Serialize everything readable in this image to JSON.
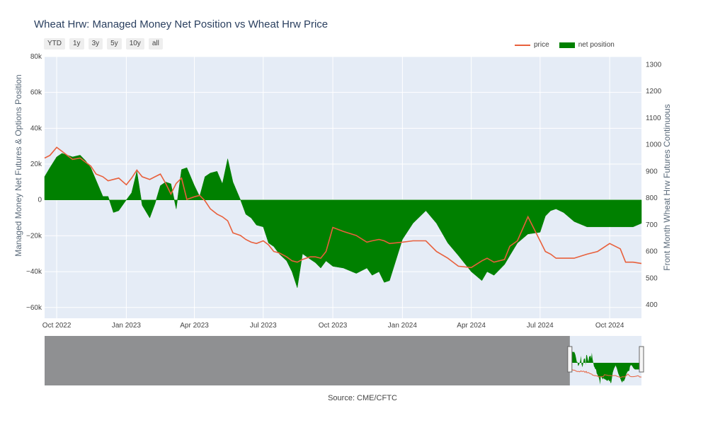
{
  "chart_data": {
    "type": "area",
    "title": "Wheat Hrw: Managed Money Net Position vs Wheat Hrw Price",
    "range_buttons": [
      "YTD",
      "1y",
      "3y",
      "5y",
      "10y",
      "all"
    ],
    "legend": [
      "price",
      "net position"
    ],
    "ylabel_left": "Managed Money Net Futures & Options Position",
    "ylabel_right": "Front Month Wheat Hrw Futures Continuous",
    "source": "Source: CME/CFTC",
    "y_left_range": [
      -66000,
      80000
    ],
    "y_right_range": [
      350,
      1330
    ],
    "y_left_ticks": [
      80000,
      60000,
      40000,
      20000,
      0,
      -20000,
      -40000,
      -60000
    ],
    "y_left_tick_labels": [
      "80k",
      "60k",
      "40k",
      "20k",
      "0",
      "−20k",
      "−40k",
      "−60k"
    ],
    "y_right_ticks": [
      1300,
      1200,
      1100,
      1000,
      900,
      800,
      700,
      600,
      500,
      400
    ],
    "x_range": [
      "2022-09-15",
      "2024-11-12"
    ],
    "x_ticks": [
      "2022-10-01",
      "2023-01-01",
      "2023-04-01",
      "2023-07-01",
      "2023-10-01",
      "2024-01-01",
      "2024-04-01",
      "2024-07-01",
      "2024-10-01"
    ],
    "x_tick_labels": [
      "Oct 2022",
      "Jan 2023",
      "Apr 2023",
      "Jul 2023",
      "Oct 2023",
      "Jan 2024",
      "Apr 2024",
      "Jul 2024",
      "Oct 2024"
    ],
    "colors": {
      "price": "#e8603c",
      "net_position": "#008000",
      "plot_bg": "#e5ecf6"
    },
    "series": [
      {
        "name": "net position",
        "x": [
          "2022-09-15",
          "2022-09-22",
          "2022-10-01",
          "2022-10-08",
          "2022-10-15",
          "2022-10-22",
          "2022-11-01",
          "2022-11-08",
          "2022-11-15",
          "2022-11-22",
          "2022-12-01",
          "2022-12-08",
          "2022-12-15",
          "2022-12-22",
          "2023-01-01",
          "2023-01-08",
          "2023-01-15",
          "2023-01-22",
          "2023-02-01",
          "2023-02-08",
          "2023-02-15",
          "2023-02-22",
          "2023-03-01",
          "2023-03-08",
          "2023-03-15",
          "2023-03-22",
          "2023-04-01",
          "2023-04-08",
          "2023-04-15",
          "2023-04-22",
          "2023-05-01",
          "2023-05-08",
          "2023-05-15",
          "2023-05-22",
          "2023-06-01",
          "2023-06-08",
          "2023-06-15",
          "2023-06-22",
          "2023-07-01",
          "2023-07-08",
          "2023-07-15",
          "2023-07-22",
          "2023-08-01",
          "2023-08-08",
          "2023-08-15",
          "2023-08-22",
          "2023-09-01",
          "2023-09-08",
          "2023-09-15",
          "2023-09-22",
          "2023-10-01",
          "2023-10-15",
          "2023-11-01",
          "2023-11-15",
          "2023-11-22",
          "2023-12-01",
          "2023-12-08",
          "2023-12-15",
          "2024-01-01",
          "2024-01-15",
          "2024-02-01",
          "2024-02-15",
          "2024-03-01",
          "2024-03-15",
          "2024-04-01",
          "2024-04-15",
          "2024-04-22",
          "2024-05-01",
          "2024-05-15",
          "2024-05-22",
          "2024-06-01",
          "2024-06-15",
          "2024-07-01",
          "2024-07-08",
          "2024-07-15",
          "2024-07-22",
          "2024-08-01",
          "2024-08-15",
          "2024-09-01",
          "2024-09-15",
          "2024-10-01",
          "2024-10-15",
          "2024-10-22",
          "2024-11-01",
          "2024-11-12"
        ],
        "values": [
          13000,
          18000,
          24000,
          26000,
          25000,
          24000,
          25000,
          22000,
          18000,
          11000,
          2000,
          2000,
          -7000,
          -6000,
          0,
          4000,
          16000,
          -3000,
          -10000,
          -2000,
          8000,
          10000,
          9000,
          -5000,
          17000,
          18000,
          8000,
          2000,
          13000,
          15000,
          16000,
          9000,
          23000,
          10000,
          0,
          -8000,
          -10000,
          -14000,
          -15000,
          -24000,
          -26000,
          -30000,
          -34000,
          -40000,
          -49000,
          -30000,
          -33000,
          -35000,
          -38000,
          -34000,
          -37000,
          -38000,
          -41000,
          -38000,
          -42000,
          -40000,
          -46000,
          -45000,
          -22000,
          -13000,
          -6000,
          -13000,
          -24000,
          -31000,
          -40000,
          -45000,
          -40000,
          -42000,
          -36000,
          -31000,
          -24000,
          -19000,
          -18000,
          -9000,
          -6000,
          -5000,
          -7000,
          -12000,
          -15000,
          -15000,
          -15000,
          -15000,
          -15000,
          -15000,
          -13000
        ]
      },
      {
        "name": "price",
        "x": [
          "2022-09-15",
          "2022-09-22",
          "2022-10-01",
          "2022-10-08",
          "2022-10-15",
          "2022-10-22",
          "2022-11-01",
          "2022-11-08",
          "2022-11-15",
          "2022-11-22",
          "2022-12-01",
          "2022-12-08",
          "2022-12-15",
          "2022-12-22",
          "2023-01-01",
          "2023-01-08",
          "2023-01-15",
          "2023-01-22",
          "2023-02-01",
          "2023-02-08",
          "2023-02-15",
          "2023-02-22",
          "2023-03-01",
          "2023-03-08",
          "2023-03-15",
          "2023-03-22",
          "2023-04-01",
          "2023-04-08",
          "2023-04-15",
          "2023-04-22",
          "2023-05-01",
          "2023-05-08",
          "2023-05-15",
          "2023-05-22",
          "2023-06-01",
          "2023-06-08",
          "2023-06-15",
          "2023-06-22",
          "2023-07-01",
          "2023-07-08",
          "2023-07-15",
          "2023-07-22",
          "2023-08-01",
          "2023-08-08",
          "2023-08-15",
          "2023-08-22",
          "2023-09-01",
          "2023-09-08",
          "2023-09-15",
          "2023-09-22",
          "2023-10-01",
          "2023-10-15",
          "2023-11-01",
          "2023-11-15",
          "2023-11-22",
          "2023-12-01",
          "2023-12-08",
          "2023-12-15",
          "2024-01-01",
          "2024-01-15",
          "2024-02-01",
          "2024-02-15",
          "2024-03-01",
          "2024-03-15",
          "2024-04-01",
          "2024-04-15",
          "2024-04-22",
          "2024-05-01",
          "2024-05-15",
          "2024-05-22",
          "2024-06-01",
          "2024-06-15",
          "2024-07-01",
          "2024-07-08",
          "2024-07-15",
          "2024-07-22",
          "2024-08-01",
          "2024-08-15",
          "2024-09-01",
          "2024-09-15",
          "2024-10-01",
          "2024-10-15",
          "2024-10-22",
          "2024-11-01",
          "2024-11-12"
        ],
        "values": [
          950,
          960,
          990,
          975,
          960,
          945,
          950,
          935,
          920,
          890,
          880,
          865,
          870,
          875,
          850,
          875,
          905,
          880,
          870,
          880,
          890,
          855,
          815,
          855,
          875,
          795,
          805,
          810,
          790,
          760,
          740,
          730,
          715,
          670,
          660,
          645,
          635,
          630,
          640,
          625,
          600,
          595,
          580,
          565,
          560,
          570,
          580,
          580,
          575,
          600,
          690,
          675,
          660,
          635,
          640,
          645,
          640,
          630,
          635,
          640,
          640,
          600,
          575,
          545,
          540,
          565,
          575,
          560,
          570,
          620,
          640,
          730,
          640,
          600,
          590,
          575,
          575,
          575,
          590,
          600,
          630,
          610,
          560,
          560,
          555
        ]
      }
    ]
  }
}
